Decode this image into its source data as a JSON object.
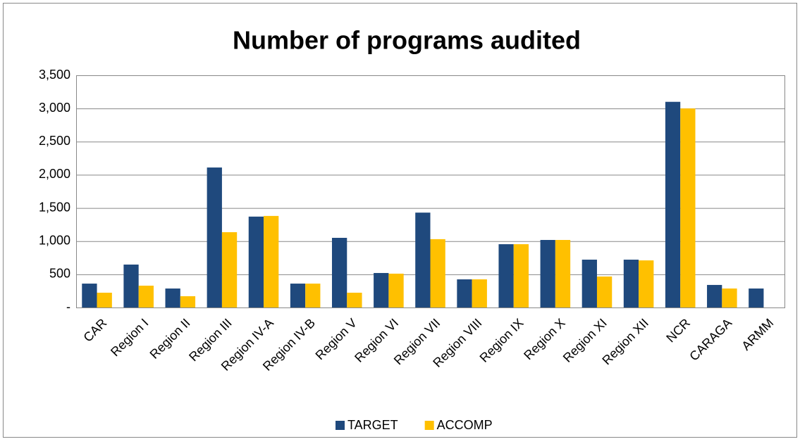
{
  "chart_data": {
    "type": "bar",
    "title": "Number of programs audited",
    "categories": [
      "CAR",
      "Region I",
      "Region II",
      "Region III",
      "Region IV-A",
      "Region IV-B",
      "Region V",
      "Region VI",
      "Region VII",
      "Region VIII",
      "Region IX",
      "Region X",
      "Region XI",
      "Region XII",
      "NCR",
      "CARAGA",
      "ARMM"
    ],
    "series": [
      {
        "name": "TARGET",
        "color": "#1f497d",
        "values": [
          360,
          647,
          286,
          2110,
          1370,
          360,
          1050,
          520,
          1430,
          424,
          954,
          1018,
          721,
          721,
          3100,
          340,
          286
        ]
      },
      {
        "name": "ACCOMP",
        "color": "#ffc000",
        "values": [
          223,
          329,
          170,
          1135,
          1380,
          360,
          223,
          510,
          1030,
          424,
          954,
          1018,
          467,
          710,
          3000,
          286,
          0
        ]
      }
    ],
    "ylim": [
      0,
      3500
    ],
    "yticks": [
      {
        "value": 0,
        "label": "-"
      },
      {
        "value": 500,
        "label": "500"
      },
      {
        "value": 1000,
        "label": "1,000"
      },
      {
        "value": 1500,
        "label": "1,500"
      },
      {
        "value": 2000,
        "label": "2,000"
      },
      {
        "value": 2500,
        "label": "2,500"
      },
      {
        "value": 3000,
        "label": "3,000"
      },
      {
        "value": 3500,
        "label": "3,500"
      }
    ],
    "grid": true,
    "legend": "bottom"
  }
}
